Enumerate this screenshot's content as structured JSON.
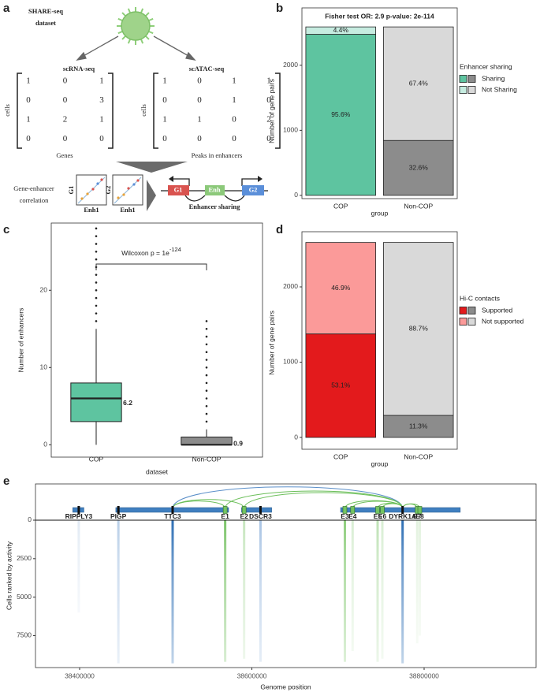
{
  "diagram": {
    "panel": "a",
    "title": [
      "SHARE-seq",
      "dataset"
    ],
    "left_matrix": {
      "title": "scRNA-seq",
      "row_label": "cells",
      "col_label": "Genes",
      "rows": [
        [
          1,
          0,
          1
        ],
        [
          0,
          0,
          3
        ],
        [
          1,
          2,
          1
        ],
        [
          0,
          0,
          0
        ]
      ]
    },
    "right_matrix": {
      "title": "scATAC-seq",
      "row_label": "cells",
      "col_label": "Peaks in enhancers",
      "rows": [
        [
          1,
          0,
          1,
          1
        ],
        [
          0,
          0,
          1,
          0
        ],
        [
          1,
          1,
          0,
          2
        ],
        [
          0,
          0,
          0,
          0
        ]
      ]
    },
    "correlation_label": [
      "Gene-enhancer",
      "correlation"
    ],
    "plots": [
      {
        "y_label": "G1",
        "x_label": "Enh1"
      },
      {
        "y_label": "G2",
        "x_label": "Enh1"
      }
    ],
    "genes": [
      "G1",
      "Enh",
      "G2"
    ],
    "sharing_label": "Enhancer sharing"
  },
  "chart_data": [
    {
      "panel": "b",
      "type": "bar",
      "stacked": true,
      "title": "Fisher test OR: 2.9 p-value: 2e-114",
      "x_label": "group",
      "y_label": "Number of gene pairs",
      "categories": [
        "COP",
        "Non-COP"
      ],
      "series": [
        {
          "name": "Sharing",
          "colors": [
            "#5ec4a0",
            "#8c8c8c"
          ],
          "values": [
            2476,
            844
          ],
          "segment_labels": [
            "95.6%",
            "32.6%"
          ]
        },
        {
          "name": "Not Sharing",
          "colors": [
            "#c6ece0",
            "#d9d9d9"
          ],
          "values": [
            114,
            1746
          ],
          "segment_labels": [
            "4.4%",
            "67.4%"
          ]
        }
      ],
      "ylim": [
        -50,
        2640
      ],
      "yticks": [
        0,
        1000,
        2000
      ],
      "legend_title": "Enhancer sharing",
      "legend": "right"
    },
    {
      "panel": "c",
      "type": "box",
      "x_label": "dataset",
      "y_label": "Number of enhancers",
      "categories": [
        "COP",
        "Non-COP"
      ],
      "colors": [
        "#5ec4a0",
        "#8c8c8c"
      ],
      "boxes": [
        {
          "whisker_low": 0,
          "q1": 3,
          "median": 6,
          "q3": 8,
          "whisker_high": 15,
          "outliers": [
            16,
            17,
            18,
            19,
            20,
            21,
            22,
            23,
            24,
            25,
            26,
            27,
            28
          ],
          "mean": 6.2
        },
        {
          "whisker_low": 0,
          "q1": 0,
          "median": 0,
          "q3": 1,
          "whisker_high": 2,
          "outliers": [
            3,
            4,
            5,
            6,
            7,
            8,
            9,
            10,
            11,
            12,
            13,
            14,
            15,
            16
          ],
          "mean": 0.9
        }
      ],
      "ylim": [
        -1.6,
        28.7
      ],
      "yticks": [
        0,
        10,
        20
      ],
      "annotation": "Wilcoxon p = 1e",
      "annotation_superscript": "-124"
    },
    {
      "panel": "d",
      "type": "bar",
      "stacked": true,
      "x_label": "group",
      "y_label": "Number of gene pairs",
      "categories": [
        "COP",
        "Non-COP"
      ],
      "series": [
        {
          "name": "Supported",
          "colors": [
            "#e31a1c",
            "#8c8c8c"
          ],
          "values": [
            1375,
            293
          ],
          "segment_labels": [
            "53.1%",
            "11.3%"
          ]
        },
        {
          "name": "Not supported",
          "colors": [
            "#fb9a99",
            "#d9d9d9"
          ],
          "values": [
            1215,
            2297
          ],
          "segment_labels": [
            "46.9%",
            "88.7%"
          ]
        }
      ],
      "ylim": [
        -157,
        2670
      ],
      "yticks": [
        0,
        1000,
        2000
      ],
      "legend_title": "Hi-C contacts",
      "legend": "right"
    },
    {
      "panel": "e",
      "type": "genome-track",
      "x_label": "Genome position",
      "y_label": "Cells ranked by activity",
      "xlim": [
        38348740,
        38929977
      ],
      "xticks": [
        38400000,
        38600000,
        38800000
      ],
      "ylim": [
        9575,
        -2355
      ],
      "yticks": [
        0,
        2500,
        5000,
        7500
      ],
      "gene_color": "#3f7fc0",
      "tss_color": "#111111",
      "enhancer_color": "#74c462",
      "genes": [
        {
          "name": "RIPPLY3",
          "start": 38392000,
          "end": 38405000,
          "tss": 38399000,
          "active_cells": 6000,
          "color": "#e1eaf4"
        },
        {
          "name": "PIGP",
          "start": 38442000,
          "end": 38508000,
          "tss": 38445000,
          "active_cells": 9300,
          "color": "#b9cfe8"
        },
        {
          "name": "TTC3",
          "start": 38508000,
          "end": 38573000,
          "tss": 38508000,
          "active_cells": 9300,
          "color": "#2e6fb5"
        },
        {
          "name": "DSCR3",
          "start": 38588000,
          "end": 38623000,
          "tss": 38610000,
          "active_cells": 9200,
          "color": "#a9c4e4"
        },
        {
          "name": "DYRK1A",
          "start": 38703000,
          "end": 38842000,
          "tss": 38775000,
          "active_cells": 9300,
          "color": "#2e6fb5"
        }
      ],
      "enhancers": [
        {
          "name": "E1",
          "position": 38569000,
          "active_cells": 9200,
          "color": "#7cc46a"
        },
        {
          "name": "E2",
          "position": 38591000,
          "active_cells": 9000,
          "color": "#c7e6bf"
        },
        {
          "name": "E3",
          "position": 38708000,
          "active_cells": 9200,
          "color": "#8fce7e"
        },
        {
          "name": "E4",
          "position": 38717000,
          "active_cells": 8500,
          "color": "#d8eed3"
        },
        {
          "name": "E5",
          "position": 38746000,
          "active_cells": 9200,
          "color": "#bfe2b6"
        },
        {
          "name": "E6",
          "position": 38751500,
          "active_cells": 9000,
          "color": "#d8eed3"
        },
        {
          "name": "E7",
          "position": 38792000,
          "active_cells": 8000,
          "color": "#e3f2df"
        },
        {
          "name": "E8",
          "position": 38795000,
          "active_cells": 7500,
          "color": "#e3f2df"
        }
      ],
      "links": [
        {
          "from": 38508000,
          "to": 38775000,
          "color": "#5b8fc9"
        },
        {
          "from": 38508000,
          "to": 38569000,
          "color": "#6cbf5a"
        },
        {
          "from": 38508000,
          "to": 38591000,
          "color": "#6cbf5a"
        },
        {
          "from": 38569000,
          "to": 38775000,
          "color": "#6cbf5a"
        },
        {
          "from": 38591000,
          "to": 38775000,
          "color": "#6cbf5a"
        },
        {
          "from": 38708000,
          "to": 38775000,
          "color": "#6cbf5a"
        },
        {
          "from": 38717000,
          "to": 38775000,
          "color": "#6cbf5a"
        },
        {
          "from": 38746000,
          "to": 38775000,
          "color": "#6cbf5a"
        },
        {
          "from": 38751500,
          "to": 38775000,
          "color": "#6cbf5a"
        },
        {
          "from": 38775000,
          "to": 38792000,
          "color": "#6cbf5a"
        },
        {
          "from": 38775000,
          "to": 38795000,
          "color": "#6cbf5a"
        }
      ]
    }
  ]
}
